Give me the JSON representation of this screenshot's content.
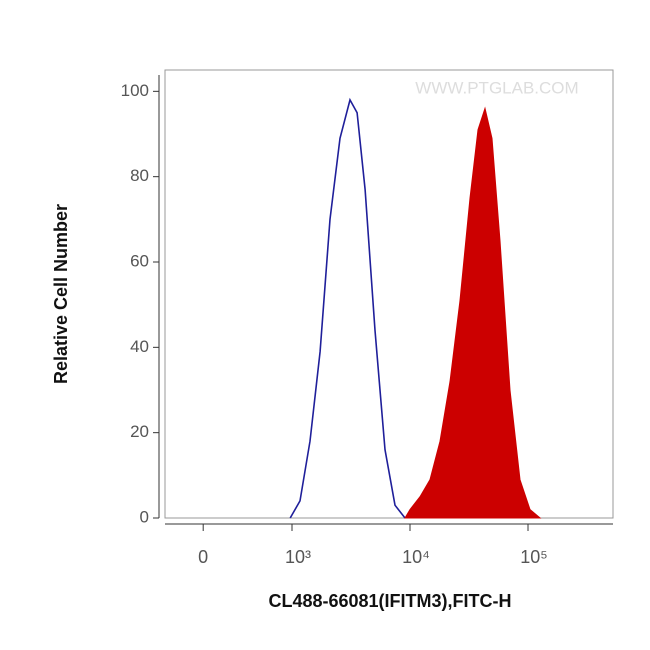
{
  "chart_data": {
    "type": "histogram-overlay",
    "xlabel": "CL488-66081(IFITM3),FITC-H",
    "ylabel": "Relative Cell Number",
    "annotation": "WWW.PTGLAB.COM",
    "xscale": "biexponential",
    "xlim": [
      -430,
      525000
    ],
    "xticks": [
      0,
      {
        "value": 1000,
        "label": "10³"
      },
      {
        "value": 10000,
        "label": "10⁴"
      },
      {
        "value": 100000,
        "label": "10⁵"
      }
    ],
    "ylim": [
      0,
      105
    ],
    "yticks": [
      0,
      20,
      40,
      60,
      80,
      100
    ],
    "series": [
      {
        "style": "line",
        "color": "#1f1f9a",
        "x": [
          980,
          1170,
          1420,
          1730,
          2100,
          2550,
          3100,
          3560,
          4160,
          5050,
          6140,
          7460,
          9070
        ],
        "values": [
          0,
          4,
          18,
          39,
          70,
          89,
          98,
          95,
          77,
          44,
          16,
          3,
          0
        ]
      },
      {
        "style": "area",
        "color": "#cc0000",
        "x": [
          9070,
          10000,
          12160,
          14760,
          17950,
          21820,
          26530,
          32230,
          37670,
          43230,
          49550,
          57940,
          70340,
          85520,
          104000,
          126500
        ],
        "values": [
          0,
          2,
          5,
          9,
          18,
          32,
          51,
          75,
          91,
          96,
          89,
          65,
          30,
          9,
          2,
          0
        ]
      }
    ]
  }
}
